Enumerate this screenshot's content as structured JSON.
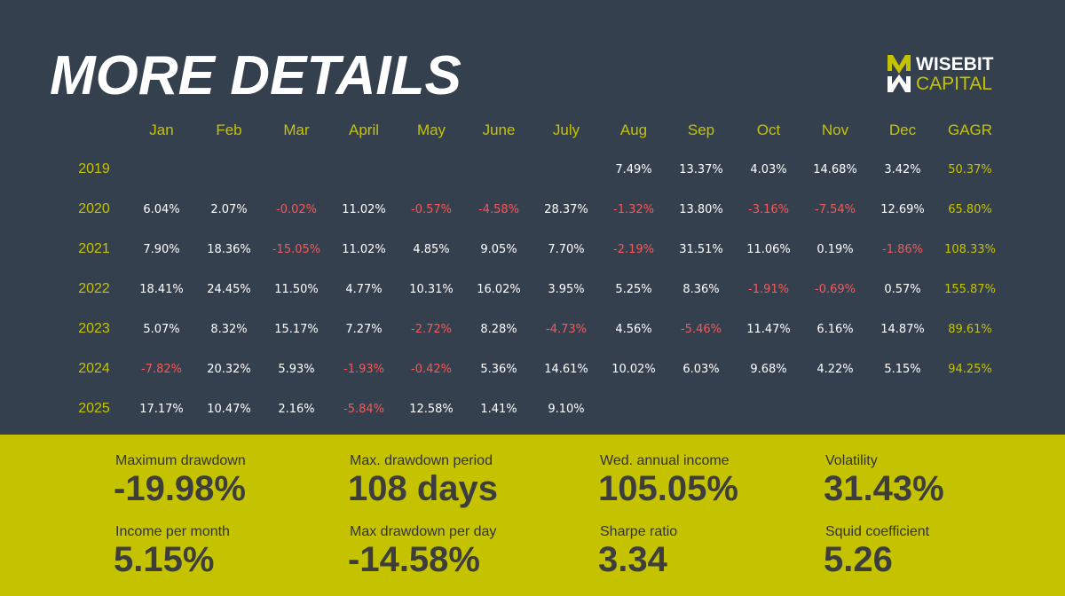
{
  "title": "MORE DETAILS",
  "logo": {
    "line1": "WISEBIT",
    "line2": "CAPITAL",
    "accent": "#c5c300"
  },
  "colors": {
    "background": "#35404e",
    "accent": "#c5c300",
    "negative": "#f05a5a",
    "positive": "#ffffff"
  },
  "table": {
    "headers": [
      "Jan",
      "Feb",
      "Mar",
      "April",
      "May",
      "June",
      "July",
      "Aug",
      "Sep",
      "Oct",
      "Nov",
      "Dec",
      "GAGR"
    ],
    "rows": [
      {
        "year": "2019",
        "cells": [
          "",
          "",
          "",
          "",
          "",
          "",
          "",
          "7.49%",
          "13.37%",
          "4.03%",
          "14.68%",
          "3.42%",
          "50.37%"
        ]
      },
      {
        "year": "2020",
        "cells": [
          "6.04%",
          "2.07%",
          "-0.02%",
          "11.02%",
          "-0.57%",
          "-4.58%",
          "28.37%",
          "-1.32%",
          "13.80%",
          "-3.16%",
          "-7.54%",
          "12.69%",
          "65.80%"
        ]
      },
      {
        "year": "2021",
        "cells": [
          "7.90%",
          "18.36%",
          "-15.05%",
          "11.02%",
          "4.85%",
          "9.05%",
          "7.70%",
          "-2.19%",
          "31.51%",
          "11.06%",
          "0.19%",
          "-1.86%",
          "108.33%"
        ]
      },
      {
        "year": "2022",
        "cells": [
          "18.41%",
          "24.45%",
          "11.50%",
          "4.77%",
          "10.31%",
          "16.02%",
          "3.95%",
          "5.25%",
          "8.36%",
          "-1.91%",
          "-0.69%",
          "0.57%",
          "155.87%"
        ]
      },
      {
        "year": "2023",
        "cells": [
          "5.07%",
          "8.32%",
          "15.17%",
          "7.27%",
          "-2.72%",
          "8.28%",
          "-4.73%",
          "4.56%",
          "-5.46%",
          "11.47%",
          "6.16%",
          "14.87%",
          "89.61%"
        ]
      },
      {
        "year": "2024",
        "cells": [
          "-7.82%",
          "20.32%",
          "5.93%",
          "-1.93%",
          "-0.42%",
          "5.36%",
          "14.61%",
          "10.02%",
          "6.03%",
          "9.68%",
          "4.22%",
          "5.15%",
          "94.25%"
        ]
      },
      {
        "year": "2025",
        "cells": [
          "17.17%",
          "10.47%",
          "2.16%",
          "-5.84%",
          "12.58%",
          "1.41%",
          "9.10%",
          "",
          "",
          "",
          "",
          "",
          ""
        ]
      }
    ]
  },
  "stats": [
    {
      "label": "Maximum drawdown",
      "value": "-19.98%"
    },
    {
      "label": "Max. drawdown period",
      "value": "108 days"
    },
    {
      "label": "Wed. annual income",
      "value": "105.05%"
    },
    {
      "label": "Volatility",
      "value": "31.43%"
    },
    {
      "label": "Income per month",
      "value": "5.15%"
    },
    {
      "label": "Max drawdown per day",
      "value": "-14.58%"
    },
    {
      "label": "Sharpe ratio",
      "value": "3.34"
    },
    {
      "label": "Squid coefficient",
      "value": "5.26"
    }
  ]
}
